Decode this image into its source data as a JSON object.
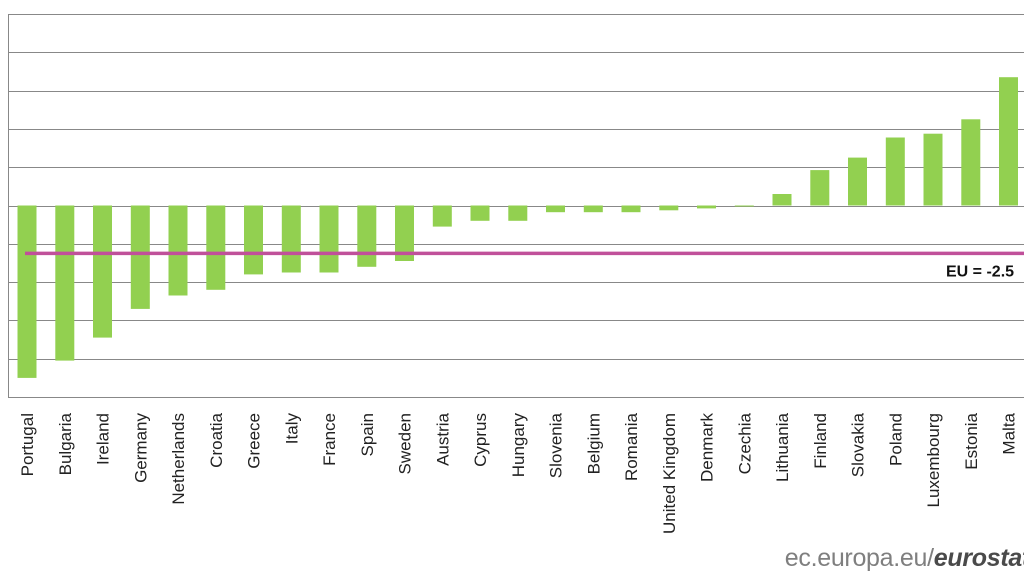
{
  "chart_data": {
    "type": "bar",
    "categories": [
      "Portugal",
      "Bulgaria",
      "Ireland",
      "Germany",
      "Netherlands",
      "Croatia",
      "Greece",
      "Italy",
      "France",
      "Spain",
      "Sweden",
      "Austria",
      "Cyprus",
      "Hungary",
      "Slovenia",
      "Belgium",
      "Romania",
      "United Kingdom",
      "Denmark",
      "Czechia",
      "Lithuania",
      "Finland",
      "Slovakia",
      "Poland",
      "Luxembourg",
      "Estonia",
      "Malta"
    ],
    "series": [
      {
        "values": [
          -9.0,
          -8.1,
          -6.9,
          -5.4,
          -4.7,
          -4.4,
          -3.6,
          -3.5,
          -3.5,
          -3.2,
          -2.9,
          -1.1,
          -0.8,
          -0.8,
          -0.35,
          -0.35,
          -0.35,
          -0.25,
          -0.15,
          -0.05,
          0.6,
          1.85,
          2.5,
          3.55,
          3.75,
          4.5,
          6.7
        ],
        "color": "#92d050"
      }
    ],
    "reference_line": {
      "label": "EU = -2.5",
      "value": -2.5,
      "color": "#c0509a"
    },
    "ylim": [
      -10,
      10
    ],
    "ytick_step": 2,
    "grid": true,
    "title": "",
    "xlabel": "",
    "ylabel": ""
  },
  "footer": {
    "site": "ec.europa.eu/",
    "brand": "eurostat"
  }
}
